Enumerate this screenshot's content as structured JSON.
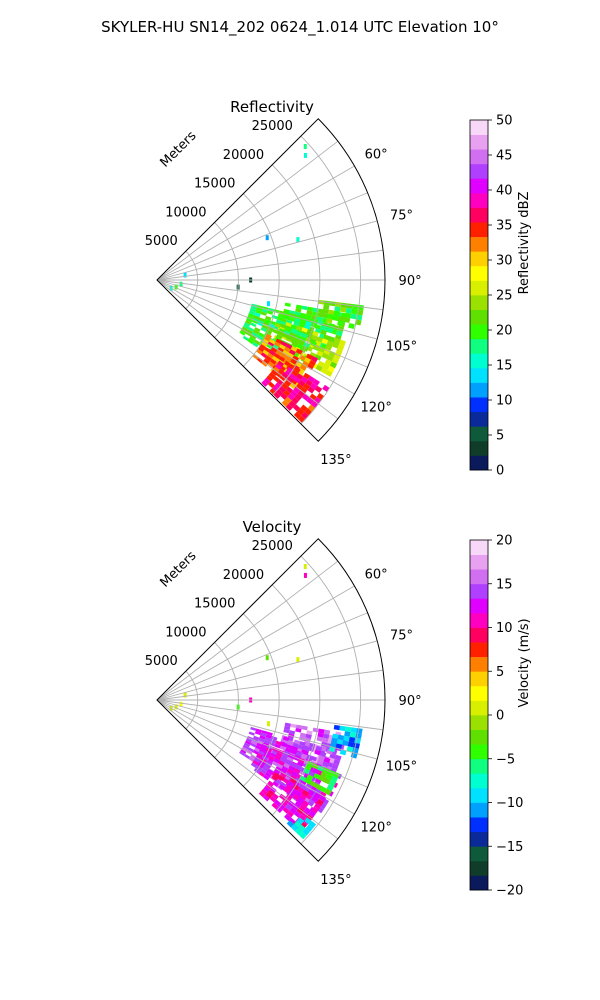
{
  "figure": {
    "title": "SKYLER-HU  SN14_202  0624_1.014 UTC Elevation 10°"
  },
  "chart_data": [
    {
      "type": "heatmap",
      "projection": "polar-sector",
      "title": "Reflectivity",
      "radial_axis_label": "Meters",
      "radial_ticks": [
        5000,
        10000,
        15000,
        20000,
        25000
      ],
      "rlim": [
        0,
        28000
      ],
      "azimuth_range_deg": [
        45,
        135
      ],
      "azimuth_tick_labels": [
        "60°",
        "75°",
        "90°",
        "105°",
        "120°",
        "135°"
      ],
      "azimuth_ticks_deg": [
        60,
        75,
        90,
        105,
        120,
        135
      ],
      "grid": true,
      "colorbar": {
        "label": "Reflectivity dBZ",
        "range": [
          0,
          50
        ],
        "ticks": [
          0,
          5,
          10,
          15,
          20,
          25,
          30,
          35,
          40,
          45,
          50
        ],
        "colors": [
          "#0a1a5a",
          "#103d2a",
          "#0e5a3a",
          "#0a2a9a",
          "#0030ff",
          "#00a0ff",
          "#00e0ff",
          "#00ffd0",
          "#10ff80",
          "#30ff00",
          "#60e000",
          "#9ae000",
          "#d8f000",
          "#ffff00",
          "#ffd000",
          "#ff8000",
          "#ff2000",
          "#ff0060",
          "#ff00c0",
          "#e000ff",
          "#b040ff",
          "#d070f0",
          "#e8a0f0",
          "#f8d8f8"
        ]
      },
      "regions": [
        {
          "az": [
            100,
            110
          ],
          "r": [
            16000,
            23500
          ],
          "value": 20
        },
        {
          "az": [
            104,
            113
          ],
          "r": [
            12000,
            22000
          ],
          "value": 19
        },
        {
          "az": [
            108,
            118
          ],
          "r": [
            16000,
            24000
          ],
          "value": 25
        },
        {
          "az": [
            110,
            123
          ],
          "r": [
            12000,
            21000
          ],
          "value": 20
        },
        {
          "az": [
            116,
            128
          ],
          "r": [
            15000,
            22000
          ],
          "value": 33
        },
        {
          "az": [
            122,
            134
          ],
          "r": [
            18000,
            25000
          ],
          "value": 36
        },
        {
          "az": [
            97,
            103
          ],
          "r": [
            20000,
            25000
          ],
          "value": 21
        }
      ],
      "speckles": [
        {
          "az": 48,
          "r": 24500,
          "value": 17
        },
        {
          "az": 50,
          "r": 23800,
          "value": 15
        },
        {
          "az": 69,
          "r": 14500,
          "value": 12
        },
        {
          "az": 74,
          "r": 18000,
          "value": 16
        },
        {
          "az": 90,
          "r": 11500,
          "value": 4
        },
        {
          "az": 95,
          "r": 10000,
          "value": 6
        },
        {
          "az": 102,
          "r": 14000,
          "value": 14
        },
        {
          "az": 80,
          "r": 3500,
          "value": 14
        },
        {
          "az": 100,
          "r": 3000,
          "value": 18
        },
        {
          "az": 110,
          "r": 2500,
          "value": 19
        },
        {
          "az": 120,
          "r": 2000,
          "value": 16
        }
      ]
    },
    {
      "type": "heatmap",
      "projection": "polar-sector",
      "title": "Velocity",
      "radial_axis_label": "Meters",
      "radial_ticks": [
        5000,
        10000,
        15000,
        20000,
        25000
      ],
      "rlim": [
        0,
        28000
      ],
      "azimuth_range_deg": [
        45,
        135
      ],
      "azimuth_tick_labels": [
        "60°",
        "75°",
        "90°",
        "105°",
        "120°",
        "135°"
      ],
      "azimuth_ticks_deg": [
        60,
        75,
        90,
        105,
        120,
        135
      ],
      "grid": true,
      "colorbar": {
        "label": "Velocity (m/s)",
        "range": [
          -20,
          20
        ],
        "ticks": [
          -20,
          -15,
          -10,
          -5,
          0,
          5,
          10,
          15,
          20
        ],
        "colors": [
          "#0a1a5a",
          "#103d2a",
          "#0e5a3a",
          "#0a2a9a",
          "#0030ff",
          "#00a0ff",
          "#00e0ff",
          "#00ffd0",
          "#10ff80",
          "#30ff00",
          "#60e000",
          "#9ae000",
          "#d8f000",
          "#ffff00",
          "#ffd000",
          "#ff8000",
          "#ff2000",
          "#ff0060",
          "#ff00c0",
          "#e000ff",
          "#b040ff",
          "#d070f0",
          "#e8a0f0",
          "#f8d8f8"
        ]
      },
      "regions": [
        {
          "az": [
            100,
            112
          ],
          "r": [
            16000,
            23500
          ],
          "value": 15
        },
        {
          "az": [
            106,
            122
          ],
          "r": [
            12000,
            22000
          ],
          "value": 14
        },
        {
          "az": [
            112,
            125
          ],
          "r": [
            14000,
            24000
          ],
          "value": 13
        },
        {
          "az": [
            120,
            132
          ],
          "r": [
            17000,
            24000
          ],
          "value": 11
        },
        {
          "az": [
            98,
            106
          ],
          "r": [
            22000,
            25000
          ],
          "value": -10
        },
        {
          "az": [
            112,
            118
          ],
          "r": [
            20000,
            24000
          ],
          "value": -4
        },
        {
          "az": [
            128,
            133
          ],
          "r": [
            22000,
            24500
          ],
          "value": -9
        }
      ],
      "speckles": [
        {
          "az": 48,
          "r": 24500,
          "value": 1
        },
        {
          "az": 50,
          "r": 23800,
          "value": 10
        },
        {
          "az": 69,
          "r": 14500,
          "value": -3
        },
        {
          "az": 74,
          "r": 18000,
          "value": 1
        },
        {
          "az": 90,
          "r": 11500,
          "value": 10
        },
        {
          "az": 95,
          "r": 10000,
          "value": -5
        },
        {
          "az": 102,
          "r": 14000,
          "value": 1
        },
        {
          "az": 80,
          "r": 3500,
          "value": 1
        },
        {
          "az": 100,
          "r": 3000,
          "value": 2
        },
        {
          "az": 110,
          "r": 2500,
          "value": 0
        },
        {
          "az": 120,
          "r": 2000,
          "value": 1
        }
      ]
    }
  ]
}
